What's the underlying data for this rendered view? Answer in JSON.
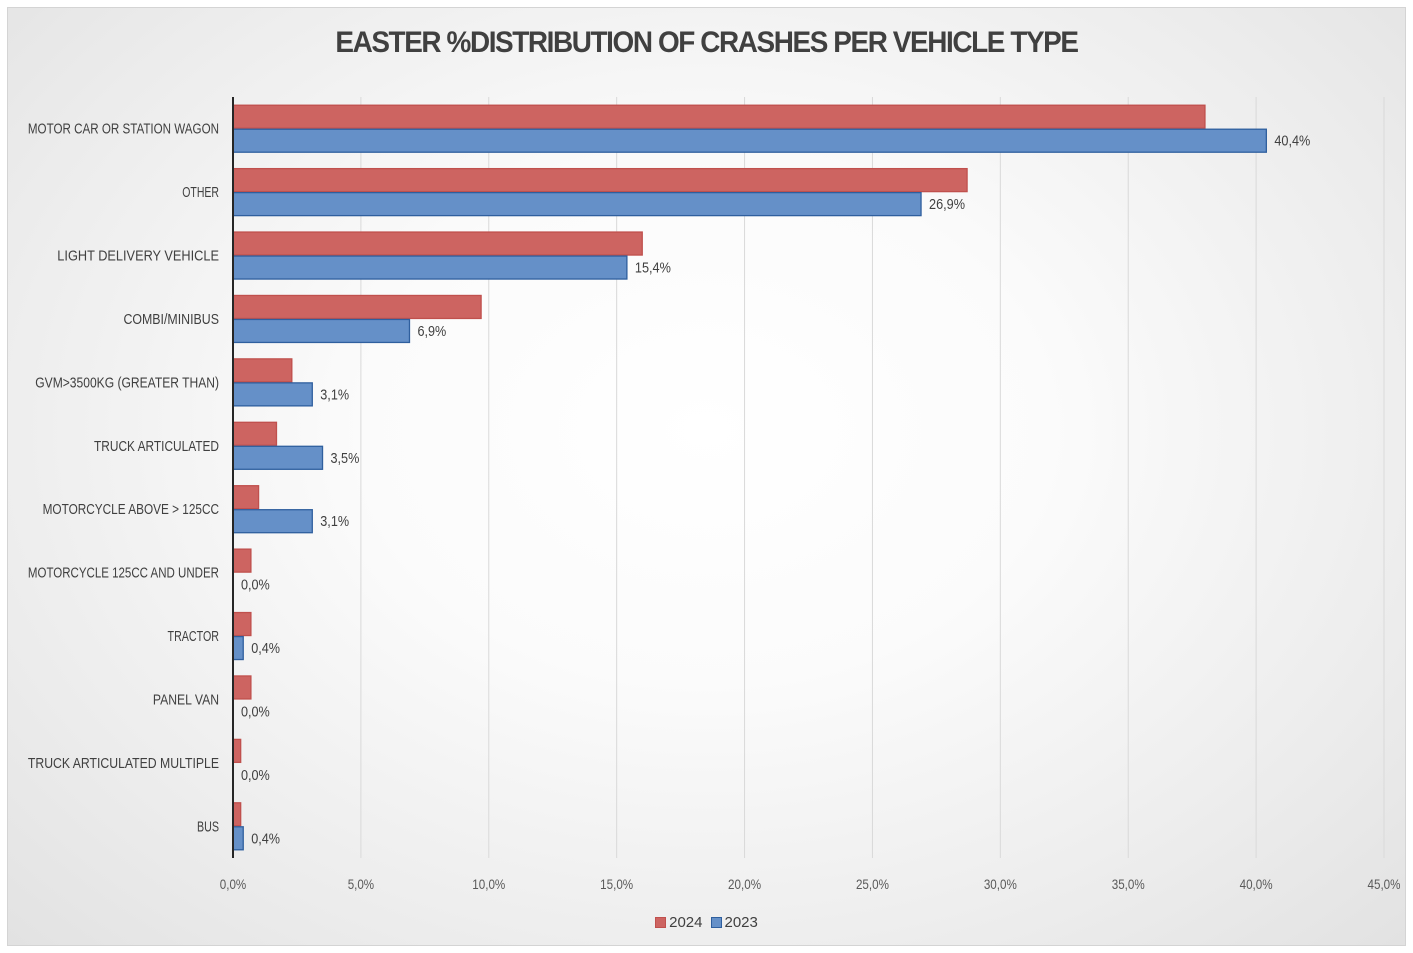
{
  "chart_data": {
    "type": "bar",
    "orientation": "horizontal",
    "title": "EASTER %DISTRIBUTION OF CRASHES PER VEHICLE TYPE",
    "xlabel": "",
    "ylabel": "",
    "categories": [
      "MOTOR CAR OR STATION WAGON",
      "OTHER",
      "LIGHT DELIVERY VEHICLE",
      "COMBI/MINIBUS",
      "GVM>3500KG (GREATER THAN)",
      "TRUCK ARTICULATED",
      "MOTORCYCLE ABOVE > 125CC",
      "MOTORCYCLE 125CC AND UNDER",
      "TRACTOR",
      "PANEL VAN",
      "TRUCK ARTICULATED MULTIPLE",
      "BUS"
    ],
    "series": [
      {
        "name": "2024",
        "color": "#c0504d",
        "fill": "#cd6461",
        "values": [
          38.0,
          28.7,
          16.0,
          9.7,
          2.3,
          1.7,
          1.0,
          0.7,
          0.7,
          0.7,
          0.3,
          0.3
        ],
        "labels": []
      },
      {
        "name": "2023",
        "color": "#2f5f9e",
        "fill": "#6590c8",
        "values": [
          40.4,
          26.9,
          15.4,
          6.9,
          3.1,
          3.5,
          3.1,
          0.0,
          0.4,
          0.0,
          0.0,
          0.4
        ],
        "labels": [
          "40,4%",
          "26,9%",
          "15,4%",
          "6,9%",
          "3,1%",
          "3,5%",
          "3,1%",
          "0,0%",
          "0,4%",
          "0,0%",
          "0,0%",
          "0,4%"
        ]
      }
    ],
    "xlim": [
      0,
      45
    ],
    "xticks": [
      0,
      5,
      10,
      15,
      20,
      25,
      30,
      35,
      40,
      45
    ],
    "xtick_labels": [
      "0,0%",
      "5,0%",
      "10,0%",
      "15,0%",
      "20,0%",
      "25,0%",
      "30,0%",
      "35,0%",
      "40,0%",
      "45,0%"
    ],
    "grid": true,
    "legend_position": "bottom"
  }
}
